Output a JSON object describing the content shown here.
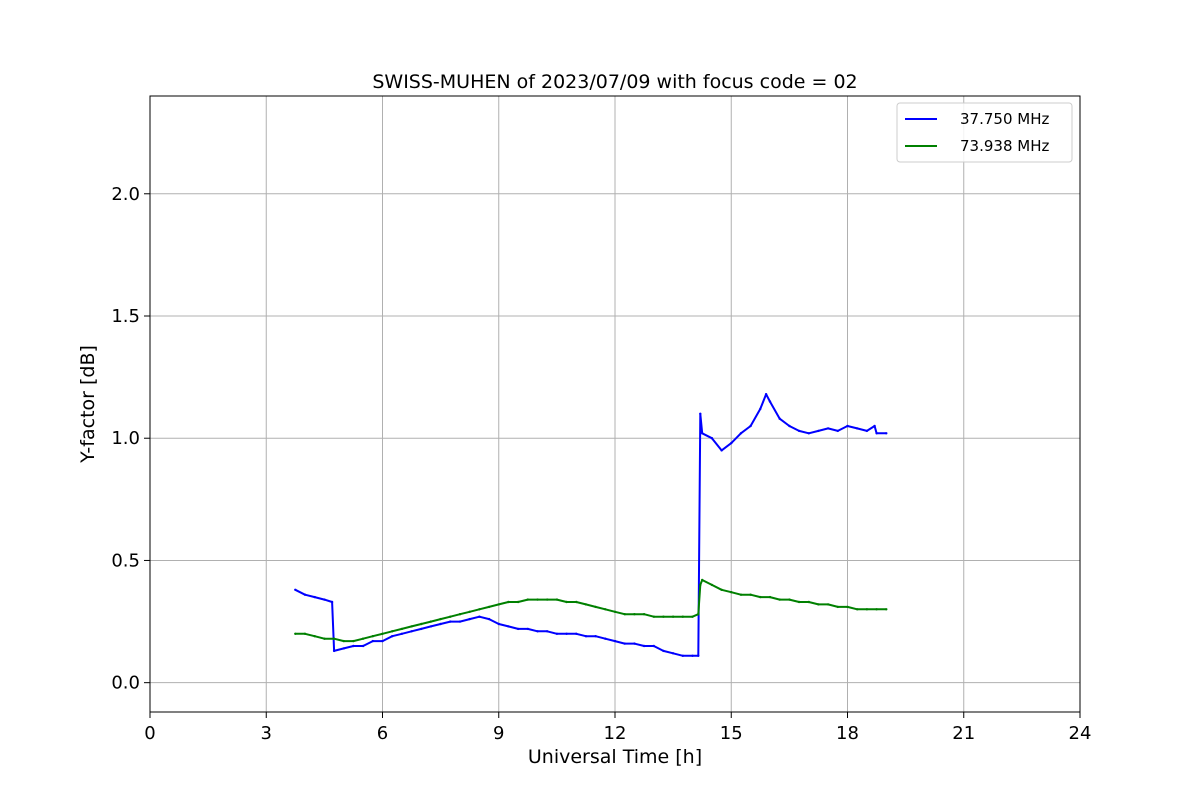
{
  "chart_data": {
    "type": "line",
    "title": "SWISS-MUHEN of 2023/07/09 with focus code = 02",
    "xlabel": "Universal Time [h]",
    "ylabel": "Y-factor [dB]",
    "xlim": [
      0,
      24
    ],
    "ylim": [
      -0.12,
      2.4
    ],
    "xticks": [
      0,
      3,
      6,
      9,
      12,
      15,
      18,
      21,
      24
    ],
    "xtick_labels": [
      "0",
      "3",
      "6",
      "9",
      "12",
      "15",
      "18",
      "21",
      "24"
    ],
    "yticks": [
      0.0,
      0.5,
      1.0,
      1.5,
      2.0
    ],
    "ytick_labels": [
      "0.0",
      "0.5",
      "1.0",
      "1.5",
      "2.0"
    ],
    "grid": true,
    "legend_position": "top-right",
    "series": [
      {
        "name": "37.750 MHz",
        "color": "#0000ff",
        "x": [
          3.75,
          4.0,
          4.25,
          4.5,
          4.7,
          4.75,
          5.0,
          5.25,
          5.5,
          5.75,
          6.0,
          6.25,
          6.5,
          6.75,
          7.0,
          7.25,
          7.5,
          7.75,
          8.0,
          8.25,
          8.5,
          8.75,
          9.0,
          9.25,
          9.5,
          9.75,
          10.0,
          10.25,
          10.5,
          10.75,
          11.0,
          11.25,
          11.5,
          11.75,
          12.0,
          12.25,
          12.5,
          12.75,
          13.0,
          13.25,
          13.5,
          13.75,
          14.0,
          14.15,
          14.2,
          14.25,
          14.5,
          14.75,
          15.0,
          15.25,
          15.5,
          15.75,
          15.9,
          16.0,
          16.25,
          16.5,
          16.75,
          17.0,
          17.25,
          17.5,
          17.75,
          18.0,
          18.25,
          18.5,
          18.7,
          18.75,
          19.0
        ],
        "y": [
          0.38,
          0.36,
          0.35,
          0.34,
          0.33,
          0.13,
          0.14,
          0.15,
          0.15,
          0.17,
          0.17,
          0.19,
          0.2,
          0.21,
          0.22,
          0.23,
          0.24,
          0.25,
          0.25,
          0.26,
          0.27,
          0.26,
          0.24,
          0.23,
          0.22,
          0.22,
          0.21,
          0.21,
          0.2,
          0.2,
          0.2,
          0.19,
          0.19,
          0.18,
          0.17,
          0.16,
          0.16,
          0.15,
          0.15,
          0.13,
          0.12,
          0.11,
          0.11,
          0.11,
          1.1,
          1.02,
          1.0,
          0.95,
          0.98,
          1.02,
          1.05,
          1.12,
          1.18,
          1.15,
          1.08,
          1.05,
          1.03,
          1.02,
          1.03,
          1.04,
          1.03,
          1.05,
          1.04,
          1.03,
          1.05,
          1.02,
          1.02
        ]
      },
      {
        "name": "73.938 MHz",
        "color": "#008000",
        "x": [
          3.75,
          4.0,
          4.25,
          4.5,
          4.75,
          5.0,
          5.25,
          5.5,
          5.75,
          6.0,
          6.25,
          6.5,
          6.75,
          7.0,
          7.25,
          7.5,
          7.75,
          8.0,
          8.25,
          8.5,
          8.75,
          9.0,
          9.25,
          9.5,
          9.75,
          10.0,
          10.25,
          10.5,
          10.75,
          11.0,
          11.25,
          11.5,
          11.75,
          12.0,
          12.25,
          12.5,
          12.75,
          13.0,
          13.25,
          13.5,
          13.75,
          14.0,
          14.15,
          14.2,
          14.25,
          14.5,
          14.75,
          15.0,
          15.25,
          15.5,
          15.75,
          16.0,
          16.25,
          16.5,
          16.75,
          17.0,
          17.25,
          17.5,
          17.75,
          18.0,
          18.25,
          18.5,
          18.75,
          19.0
        ],
        "y": [
          0.2,
          0.2,
          0.19,
          0.18,
          0.18,
          0.17,
          0.17,
          0.18,
          0.19,
          0.2,
          0.21,
          0.22,
          0.23,
          0.24,
          0.25,
          0.26,
          0.27,
          0.28,
          0.29,
          0.3,
          0.31,
          0.32,
          0.33,
          0.33,
          0.34,
          0.34,
          0.34,
          0.34,
          0.33,
          0.33,
          0.32,
          0.31,
          0.3,
          0.29,
          0.28,
          0.28,
          0.28,
          0.27,
          0.27,
          0.27,
          0.27,
          0.27,
          0.28,
          0.4,
          0.42,
          0.4,
          0.38,
          0.37,
          0.36,
          0.36,
          0.35,
          0.35,
          0.34,
          0.34,
          0.33,
          0.33,
          0.32,
          0.32,
          0.31,
          0.31,
          0.3,
          0.3,
          0.3,
          0.3
        ]
      }
    ]
  }
}
